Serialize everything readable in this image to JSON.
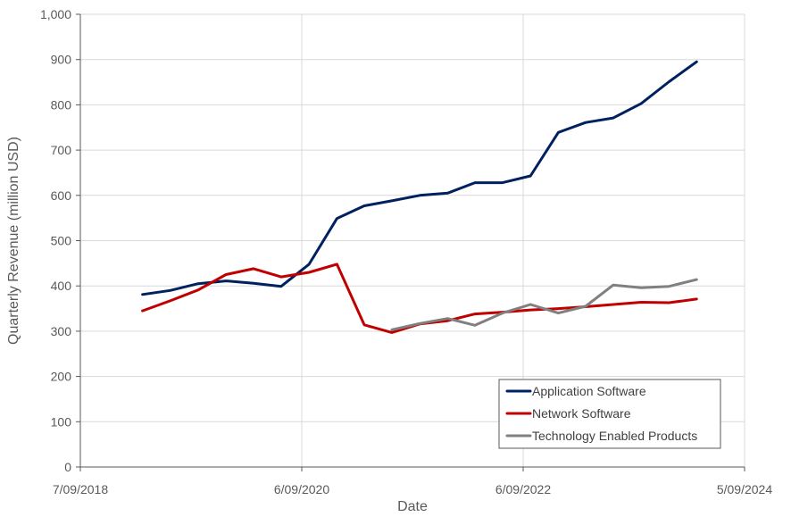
{
  "chart_data": {
    "type": "line",
    "title": "",
    "xlabel": "Date",
    "ylabel": "Quarterly Revenue (million USD)",
    "ylim": [
      0,
      1000
    ],
    "y_ticks": [
      0,
      100,
      200,
      300,
      400,
      500,
      600,
      700,
      800,
      900,
      1000
    ],
    "y_tick_labels": [
      "0",
      "100",
      "200",
      "300",
      "400",
      "500",
      "600",
      "700",
      "800",
      "900",
      "1,000"
    ],
    "xlim": [
      "2018-09-07",
      "2024-09-05"
    ],
    "x_ticks": [
      "2018-09-07",
      "2020-09-06",
      "2022-09-06",
      "2024-09-05"
    ],
    "x_tick_labels": [
      "7/09/2018",
      "6/09/2020",
      "6/09/2022",
      "5/09/2024"
    ],
    "grid": true,
    "legend_position": "bottom-right",
    "series": [
      {
        "name": "Application Software",
        "color": "#002060",
        "points": [
          [
            "2019-03-31",
            381
          ],
          [
            "2019-06-30",
            390
          ],
          [
            "2019-09-30",
            405
          ],
          [
            "2019-12-31",
            411
          ],
          [
            "2020-03-31",
            406
          ],
          [
            "2020-06-30",
            399
          ],
          [
            "2020-09-30",
            448
          ],
          [
            "2020-12-31",
            549
          ],
          [
            "2021-03-31",
            577
          ],
          [
            "2021-06-30",
            588
          ],
          [
            "2021-09-30",
            600
          ],
          [
            "2021-12-31",
            605
          ],
          [
            "2022-03-31",
            628
          ],
          [
            "2022-06-30",
            628
          ],
          [
            "2022-09-30",
            643
          ],
          [
            "2022-12-31",
            739
          ],
          [
            "2023-03-31",
            761
          ],
          [
            "2023-06-30",
            771
          ],
          [
            "2023-09-30",
            803
          ],
          [
            "2023-12-31",
            851
          ],
          [
            "2024-03-31",
            895
          ]
        ]
      },
      {
        "name": "Network Software",
        "color": "#c00000",
        "points": [
          [
            "2019-03-31",
            345
          ],
          [
            "2019-06-30",
            367
          ],
          [
            "2019-09-30",
            391
          ],
          [
            "2019-12-31",
            425
          ],
          [
            "2020-03-31",
            438
          ],
          [
            "2020-06-30",
            420
          ],
          [
            "2020-09-30",
            430
          ],
          [
            "2020-12-31",
            448
          ],
          [
            "2021-03-31",
            314
          ],
          [
            "2021-06-30",
            297
          ],
          [
            "2021-09-30",
            316
          ],
          [
            "2021-12-31",
            323
          ],
          [
            "2022-03-31",
            338
          ],
          [
            "2022-06-30",
            342
          ],
          [
            "2022-09-30",
            347
          ],
          [
            "2022-12-31",
            350
          ],
          [
            "2023-03-31",
            354
          ],
          [
            "2023-06-30",
            359
          ],
          [
            "2023-09-30",
            364
          ],
          [
            "2023-12-31",
            363
          ],
          [
            "2024-03-31",
            371
          ]
        ]
      },
      {
        "name": "Technology Enabled Products",
        "color": "#808080",
        "points": [
          [
            "2021-06-30",
            303
          ],
          [
            "2021-09-30",
            317
          ],
          [
            "2021-12-31",
            328
          ],
          [
            "2022-03-31",
            313
          ],
          [
            "2022-06-30",
            340
          ],
          [
            "2022-09-30",
            359
          ],
          [
            "2022-12-31",
            340
          ],
          [
            "2023-03-31",
            355
          ],
          [
            "2023-06-30",
            402
          ],
          [
            "2023-09-30",
            396
          ],
          [
            "2023-12-31",
            399
          ],
          [
            "2024-03-31",
            414
          ]
        ]
      }
    ]
  }
}
